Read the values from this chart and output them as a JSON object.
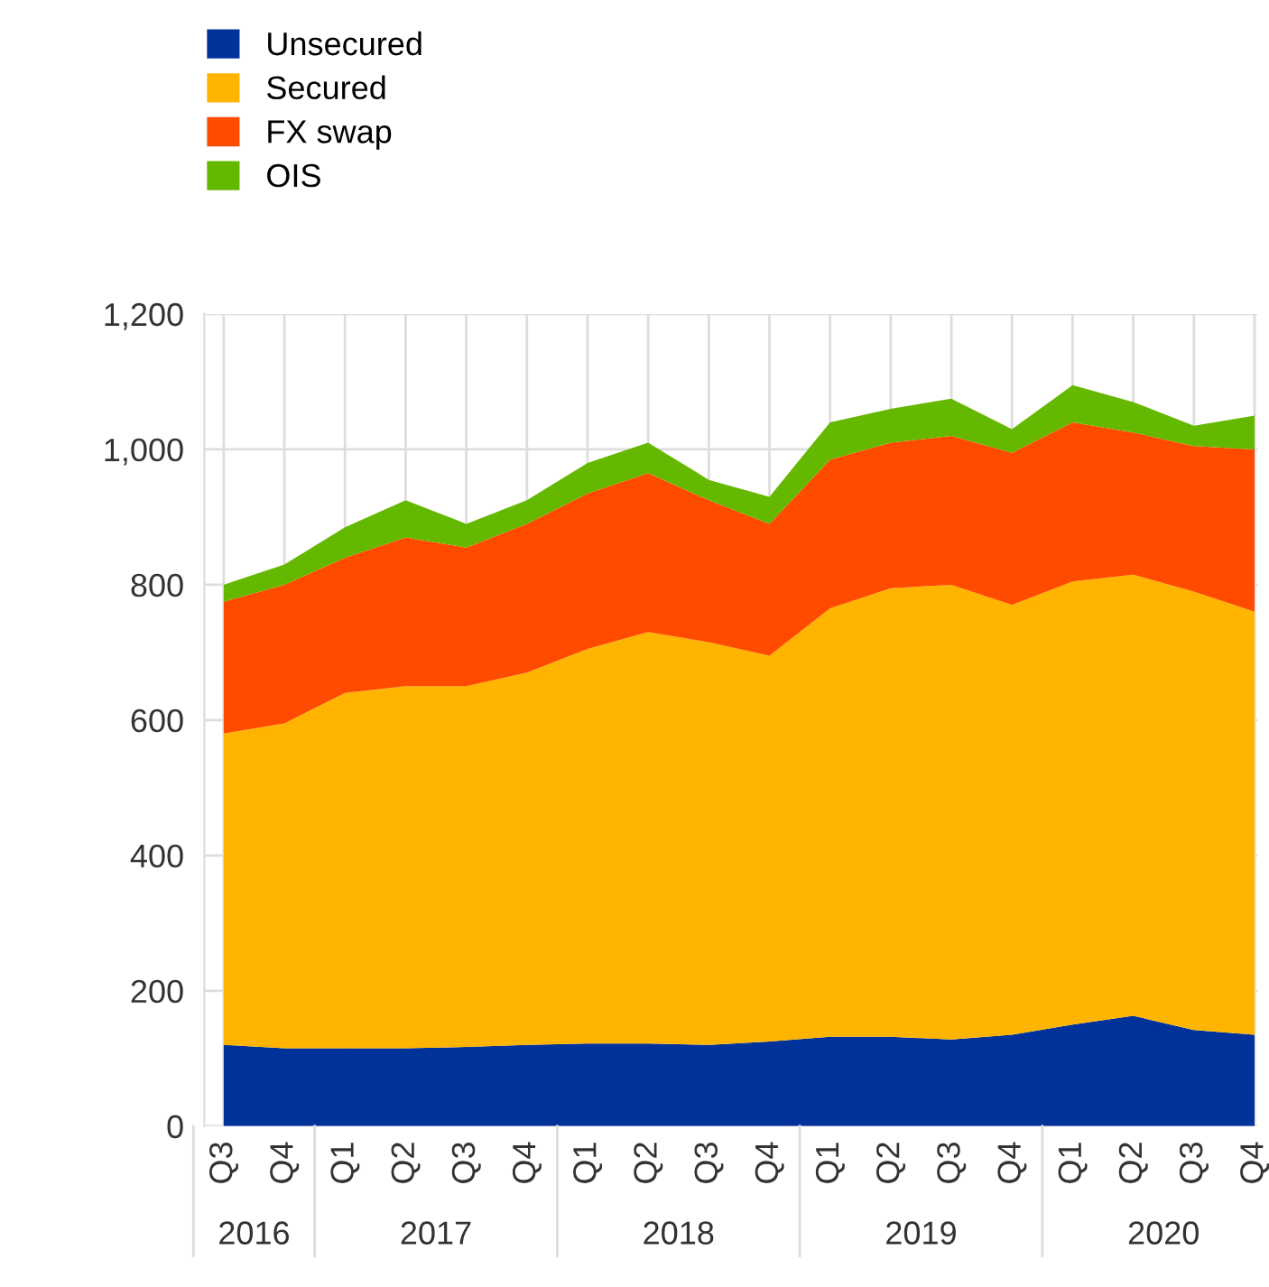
{
  "chart_data": {
    "type": "area",
    "stacked": true,
    "categories": [
      "Q3",
      "Q4",
      "Q1",
      "Q2",
      "Q3",
      "Q4",
      "Q1",
      "Q2",
      "Q3",
      "Q4",
      "Q1",
      "Q2",
      "Q3",
      "Q4",
      "Q1",
      "Q2",
      "Q3",
      "Q4"
    ],
    "annotations": [
      "2016",
      "2017",
      "2018",
      "2019",
      "2020"
    ],
    "series": [
      {
        "name": "Unsecured",
        "color": "#003299",
        "values": [
          120,
          115,
          115,
          115,
          117,
          120,
          122,
          122,
          120,
          125,
          132,
          132,
          128,
          135,
          150,
          163,
          142,
          135
        ]
      },
      {
        "name": "Secured",
        "color": "#ffb400",
        "values": [
          460,
          480,
          525,
          535,
          533,
          550,
          583,
          608,
          595,
          570,
          633,
          663,
          672,
          635,
          655,
          652,
          648,
          625
        ]
      },
      {
        "name": "FX swap",
        "color": "#ff4b00",
        "values": [
          195,
          205,
          200,
          220,
          205,
          220,
          230,
          235,
          210,
          195,
          220,
          215,
          220,
          225,
          235,
          210,
          215,
          240
        ]
      },
      {
        "name": "OIS",
        "color": "#65b800",
        "values": [
          25,
          30,
          45,
          55,
          35,
          35,
          45,
          45,
          30,
          40,
          55,
          50,
          55,
          35,
          55,
          45,
          30,
          50
        ]
      }
    ],
    "ylim": [
      0,
      1200
    ],
    "yticks": [
      0,
      200,
      400,
      600,
      800,
      {
        "value": 1000,
        "label": "1,000"
      },
      {
        "value": 1200,
        "label": "1,200"
      }
    ],
    "grid": true,
    "legend": "top left"
  }
}
